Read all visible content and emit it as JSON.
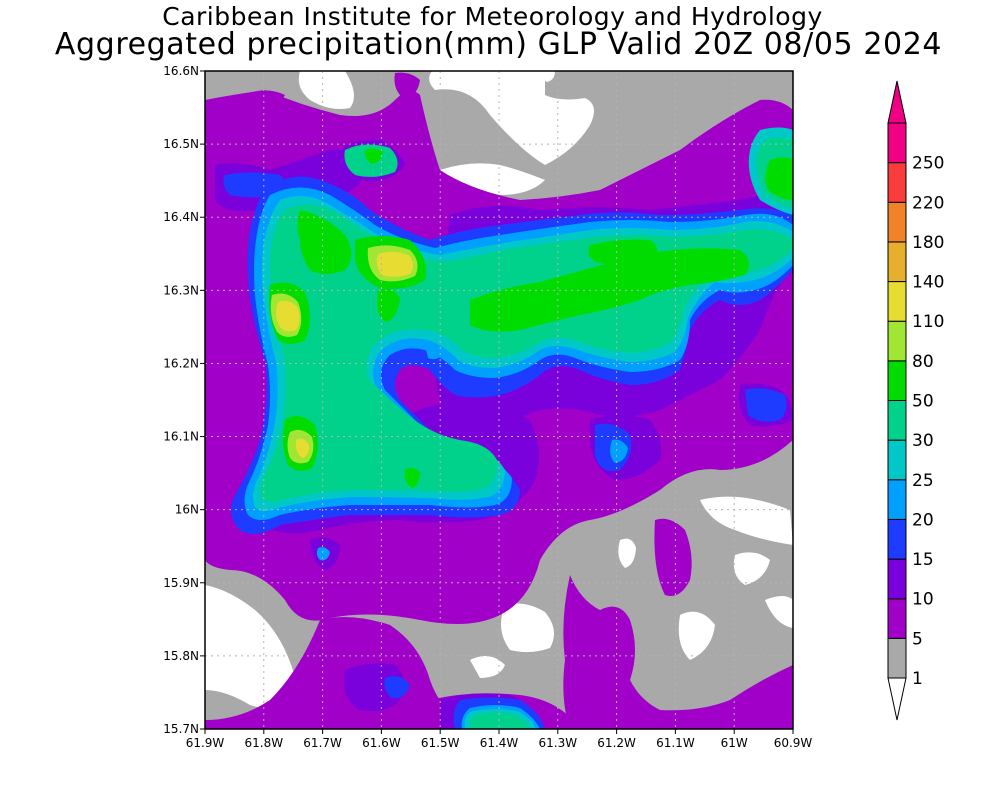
{
  "titles": {
    "line1": "Caribbean Institute for Meteorology and Hydrology",
    "line2": "Aggregated precipitation(mm) GLP Valid 20Z 08/05 2024"
  },
  "map": {
    "lon_range": [
      -61.9,
      -60.9
    ],
    "lat_range": [
      15.7,
      16.6
    ],
    "x_ticks": [
      {
        "value": -61.9,
        "label": "61.9W"
      },
      {
        "value": -61.8,
        "label": "61.8W"
      },
      {
        "value": -61.7,
        "label": "61.7W"
      },
      {
        "value": -61.6,
        "label": "61.6W"
      },
      {
        "value": -61.5,
        "label": "61.5W"
      },
      {
        "value": -61.4,
        "label": "61.4W"
      },
      {
        "value": -61.3,
        "label": "61.3W"
      },
      {
        "value": -61.2,
        "label": "61.2W"
      },
      {
        "value": -61.1,
        "label": "61.1W"
      },
      {
        "value": -61.0,
        "label": "61W"
      },
      {
        "value": -60.9,
        "label": "60.9W"
      }
    ],
    "y_ticks": [
      {
        "value": 15.7,
        "label": "15.7N"
      },
      {
        "value": 15.8,
        "label": "15.8N"
      },
      {
        "value": 15.9,
        "label": "15.9N"
      },
      {
        "value": 16.0,
        "label": "16N"
      },
      {
        "value": 16.1,
        "label": "16.1N"
      },
      {
        "value": 16.2,
        "label": "16.2N"
      },
      {
        "value": 16.3,
        "label": "16.3N"
      },
      {
        "value": 16.4,
        "label": "16.4N"
      },
      {
        "value": 16.5,
        "label": "16.5N"
      },
      {
        "value": 16.6,
        "label": "16.6N"
      }
    ],
    "grid": true
  },
  "colorbar": {
    "unit": "mm",
    "levels": [
      {
        "label": "1",
        "color": "#a9a9a9"
      },
      {
        "label": "5",
        "color": "#a100c8"
      },
      {
        "label": "10",
        "color": "#7a00dc"
      },
      {
        "label": "15",
        "color": "#1e3cff"
      },
      {
        "label": "20",
        "color": "#00a0ff"
      },
      {
        "label": "25",
        "color": "#00c8c8"
      },
      {
        "label": "30",
        "color": "#00d28c"
      },
      {
        "label": "50",
        "color": "#00dc00"
      },
      {
        "label": "80",
        "color": "#a0e632"
      },
      {
        "label": "110",
        "color": "#e6dc32"
      },
      {
        "label": "140",
        "color": "#e6af2d"
      },
      {
        "label": "180",
        "color": "#f08228"
      },
      {
        "label": "220",
        "color": "#fa3c3c"
      },
      {
        "label": "250",
        "color": "#f00082"
      }
    ],
    "low_end_color": "#ffffff",
    "high_end_color": "#f00082"
  }
}
